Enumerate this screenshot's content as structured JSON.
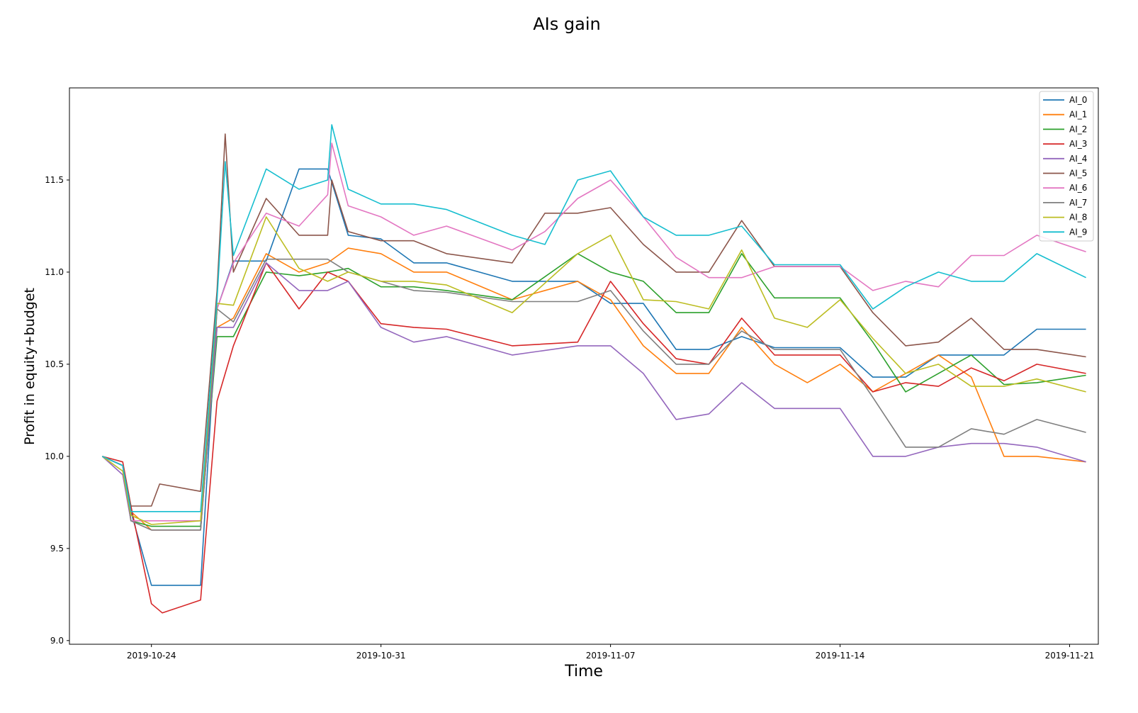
{
  "chart_data": {
    "type": "line",
    "title": "AIs gain",
    "xlabel": "Time",
    "ylabel": "Profit in equity+budget",
    "ylim": [
      8.98,
      12.0
    ],
    "xlim": [
      "2019-10-21T12:00",
      "2019-11-21T21:00"
    ],
    "y_ticks": [
      9.0,
      9.5,
      10.0,
      10.5,
      11.0,
      11.5
    ],
    "y_tick_labels": [
      "9.0",
      "9.5",
      "10.0",
      "10.5",
      "11.0",
      "11.5"
    ],
    "x_ticks": [
      "2019-10-24",
      "2019-10-31",
      "2019-11-07",
      "2019-11-14",
      "2019-11-21"
    ],
    "x_tick_labels": [
      "2019-10-24",
      "2019-10-31",
      "2019-11-07",
      "2019-11-14",
      "2019-11-21"
    ],
    "grid": false,
    "legend_position": "top-right",
    "series": [
      {
        "name": "AI_0",
        "color": "#1f77b4",
        "x": [
          "2019-10-22T12:00",
          "2019-10-23T03:00",
          "2019-10-23T09:00",
          "2019-10-24T00:00",
          "2019-10-25T12:00",
          "2019-10-26T00:00",
          "2019-10-26T12:00",
          "2019-10-27T12:00",
          "2019-10-28T12:00",
          "2019-10-29T09:00",
          "2019-10-30T00:00",
          "2019-10-31T00:00",
          "2019-11-01T00:00",
          "2019-11-02T00:00",
          "2019-11-04T00:00",
          "2019-11-06T00:00",
          "2019-11-07T00:00",
          "2019-11-08T00:00",
          "2019-11-09T00:00",
          "2019-11-10T00:00",
          "2019-11-11T00:00",
          "2019-11-12T00:00",
          "2019-11-14T00:00",
          "2019-11-15T00:00",
          "2019-11-16T00:00",
          "2019-11-17T00:00",
          "2019-11-18T00:00",
          "2019-11-19T00:00",
          "2019-11-20T00:00",
          "2019-11-21T12:00"
        ],
        "y": [
          10.0,
          9.95,
          9.7,
          9.3,
          9.3,
          10.8,
          11.06,
          11.06,
          11.56,
          11.56,
          11.2,
          11.18,
          11.05,
          11.05,
          10.95,
          10.95,
          10.83,
          10.83,
          10.58,
          10.58,
          10.65,
          10.59,
          10.59,
          10.43,
          10.43,
          10.55,
          10.55,
          10.55,
          10.69,
          10.69
        ]
      },
      {
        "name": "AI_1",
        "color": "#ff7f0e",
        "x": [
          "2019-10-22T12:00",
          "2019-10-23T03:00",
          "2019-10-23T09:00",
          "2019-10-24T00:00",
          "2019-10-25T12:00",
          "2019-10-26T00:00",
          "2019-10-26T12:00",
          "2019-10-27T12:00",
          "2019-10-28T12:00",
          "2019-10-29T09:00",
          "2019-10-30T00:00",
          "2019-10-31T00:00",
          "2019-11-01T00:00",
          "2019-11-02T00:00",
          "2019-11-04T00:00",
          "2019-11-06T00:00",
          "2019-11-07T00:00",
          "2019-11-08T00:00",
          "2019-11-09T00:00",
          "2019-11-10T00:00",
          "2019-11-11T00:00",
          "2019-11-12T00:00",
          "2019-11-13T00:00",
          "2019-11-14T00:00",
          "2019-11-15T00:00",
          "2019-11-16T00:00",
          "2019-11-17T00:00",
          "2019-11-18T00:00",
          "2019-11-19T00:00",
          "2019-11-20T00:00",
          "2019-11-21T12:00"
        ],
        "y": [
          10.0,
          9.95,
          9.7,
          9.6,
          9.6,
          10.7,
          10.75,
          11.1,
          11.0,
          11.05,
          11.13,
          11.1,
          11.0,
          11.0,
          10.85,
          10.95,
          10.85,
          10.6,
          10.45,
          10.45,
          10.7,
          10.5,
          10.4,
          10.5,
          10.35,
          10.45,
          10.55,
          10.43,
          10.0,
          10.0,
          9.97
        ]
      },
      {
        "name": "AI_2",
        "color": "#2ca02c",
        "x": [
          "2019-10-22T12:00",
          "2019-10-23T03:00",
          "2019-10-23T09:00",
          "2019-10-24T00:00",
          "2019-10-25T12:00",
          "2019-10-26T00:00",
          "2019-10-26T12:00",
          "2019-10-27T12:00",
          "2019-10-28T12:00",
          "2019-10-29T09:00",
          "2019-10-30T00:00",
          "2019-10-31T00:00",
          "2019-11-01T00:00",
          "2019-11-02T00:00",
          "2019-11-04T00:00",
          "2019-11-06T00:00",
          "2019-11-07T00:00",
          "2019-11-08T00:00",
          "2019-11-09T00:00",
          "2019-11-10T00:00",
          "2019-11-11T00:00",
          "2019-11-12T00:00",
          "2019-11-14T00:00",
          "2019-11-15T00:00",
          "2019-11-16T00:00",
          "2019-11-17T00:00",
          "2019-11-18T00:00",
          "2019-11-19T00:00",
          "2019-11-20T00:00",
          "2019-11-21T12:00"
        ],
        "y": [
          10.0,
          9.95,
          9.65,
          9.62,
          9.62,
          10.65,
          10.65,
          11.0,
          10.98,
          11.0,
          11.02,
          10.92,
          10.92,
          10.9,
          10.85,
          11.1,
          11.0,
          10.95,
          10.78,
          10.78,
          11.1,
          10.86,
          10.86,
          10.62,
          10.35,
          10.45,
          10.55,
          10.39,
          10.4,
          10.44
        ]
      },
      {
        "name": "AI_3",
        "color": "#d62728",
        "x": [
          "2019-10-22T12:00",
          "2019-10-23T03:00",
          "2019-10-23T09:00",
          "2019-10-24T00:00",
          "2019-10-24T08:00",
          "2019-10-25T12:00",
          "2019-10-26T00:00",
          "2019-10-26T12:00",
          "2019-10-27T12:00",
          "2019-10-28T12:00",
          "2019-10-29T09:00",
          "2019-10-30T00:00",
          "2019-10-31T00:00",
          "2019-11-01T00:00",
          "2019-11-02T00:00",
          "2019-11-04T00:00",
          "2019-11-06T00:00",
          "2019-11-07T00:00",
          "2019-11-08T00:00",
          "2019-11-09T00:00",
          "2019-11-10T00:00",
          "2019-11-11T00:00",
          "2019-11-12T00:00",
          "2019-11-14T00:00",
          "2019-11-15T00:00",
          "2019-11-16T00:00",
          "2019-11-17T00:00",
          "2019-11-18T00:00",
          "2019-11-19T00:00",
          "2019-11-20T00:00",
          "2019-11-21T12:00"
        ],
        "y": [
          10.0,
          9.97,
          9.73,
          9.2,
          9.15,
          9.22,
          10.3,
          10.6,
          11.05,
          10.8,
          11.0,
          10.95,
          10.72,
          10.7,
          10.69,
          10.6,
          10.62,
          10.95,
          10.72,
          10.53,
          10.5,
          10.75,
          10.55,
          10.55,
          10.35,
          10.4,
          10.38,
          10.48,
          10.41,
          10.5,
          10.45
        ]
      },
      {
        "name": "AI_4",
        "color": "#9467bd",
        "x": [
          "2019-10-22T12:00",
          "2019-10-23T03:00",
          "2019-10-23T09:00",
          "2019-10-24T00:00",
          "2019-10-25T12:00",
          "2019-10-26T00:00",
          "2019-10-26T12:00",
          "2019-10-27T12:00",
          "2019-10-28T12:00",
          "2019-10-29T09:00",
          "2019-10-30T00:00",
          "2019-10-31T00:00",
          "2019-11-01T00:00",
          "2019-11-02T00:00",
          "2019-11-04T00:00",
          "2019-11-06T00:00",
          "2019-11-07T00:00",
          "2019-11-08T00:00",
          "2019-11-09T00:00",
          "2019-11-10T00:00",
          "2019-11-11T00:00",
          "2019-11-12T00:00",
          "2019-11-14T00:00",
          "2019-11-15T00:00",
          "2019-11-16T00:00",
          "2019-11-17T00:00",
          "2019-11-18T00:00",
          "2019-11-19T00:00",
          "2019-11-20T00:00",
          "2019-11-21T12:00"
        ],
        "y": [
          10.0,
          9.9,
          9.65,
          9.6,
          9.6,
          10.7,
          10.7,
          11.05,
          10.9,
          10.9,
          10.95,
          10.7,
          10.62,
          10.65,
          10.55,
          10.6,
          10.6,
          10.45,
          10.2,
          10.23,
          10.4,
          10.26,
          10.26,
          10.0,
          10.0,
          10.05,
          10.07,
          10.07,
          10.05,
          9.97
        ]
      },
      {
        "name": "AI_5",
        "color": "#8c564b",
        "x": [
          "2019-10-22T12:00",
          "2019-10-23T03:00",
          "2019-10-23T09:00",
          "2019-10-24T00:00",
          "2019-10-24T06:00",
          "2019-10-25T12:00",
          "2019-10-26T00:00",
          "2019-10-26T06:00",
          "2019-10-26T12:00",
          "2019-10-27T12:00",
          "2019-10-28T12:00",
          "2019-10-29T09:00",
          "2019-10-29T12:00",
          "2019-10-30T00:00",
          "2019-10-31T00:00",
          "2019-11-01T00:00",
          "2019-11-02T00:00",
          "2019-11-04T00:00",
          "2019-11-05T00:00",
          "2019-11-06T00:00",
          "2019-11-07T00:00",
          "2019-11-08T00:00",
          "2019-11-09T00:00",
          "2019-11-10T00:00",
          "2019-11-11T00:00",
          "2019-11-12T00:00",
          "2019-11-14T00:00",
          "2019-11-15T00:00",
          "2019-11-16T00:00",
          "2019-11-17T00:00",
          "2019-11-18T00:00",
          "2019-11-19T00:00",
          "2019-11-20T00:00",
          "2019-11-21T12:00"
        ],
        "y": [
          10.0,
          9.95,
          9.73,
          9.73,
          9.85,
          9.81,
          10.9,
          11.75,
          11.0,
          11.4,
          11.2,
          11.2,
          11.5,
          11.22,
          11.17,
          11.17,
          11.1,
          11.05,
          11.32,
          11.32,
          11.35,
          11.15,
          11.0,
          11.0,
          11.28,
          11.03,
          11.03,
          10.78,
          10.6,
          10.62,
          10.75,
          10.58,
          10.58,
          10.54
        ]
      },
      {
        "name": "AI_6",
        "color": "#e377c2",
        "x": [
          "2019-10-22T12:00",
          "2019-10-23T03:00",
          "2019-10-23T09:00",
          "2019-10-24T00:00",
          "2019-10-25T12:00",
          "2019-10-26T00:00",
          "2019-10-26T12:00",
          "2019-10-27T12:00",
          "2019-10-28T12:00",
          "2019-10-29T09:00",
          "2019-10-29T12:00",
          "2019-10-30T00:00",
          "2019-10-31T00:00",
          "2019-11-01T00:00",
          "2019-11-02T00:00",
          "2019-11-04T00:00",
          "2019-11-05T00:00",
          "2019-11-06T00:00",
          "2019-11-07T00:00",
          "2019-11-08T00:00",
          "2019-11-09T00:00",
          "2019-11-10T00:00",
          "2019-11-11T00:00",
          "2019-11-12T00:00",
          "2019-11-14T00:00",
          "2019-11-15T00:00",
          "2019-11-16T00:00",
          "2019-11-17T00:00",
          "2019-11-18T00:00",
          "2019-11-19T00:00",
          "2019-11-20T00:00",
          "2019-11-21T12:00"
        ],
        "y": [
          10.0,
          9.95,
          9.65,
          9.65,
          9.65,
          10.8,
          11.05,
          11.32,
          11.25,
          11.42,
          11.7,
          11.36,
          11.3,
          11.2,
          11.25,
          11.12,
          11.22,
          11.4,
          11.5,
          11.3,
          11.08,
          10.97,
          10.97,
          11.03,
          11.03,
          10.9,
          10.95,
          10.92,
          11.09,
          11.09,
          11.2,
          11.11
        ]
      },
      {
        "name": "AI_7",
        "color": "#7f7f7f",
        "x": [
          "2019-10-22T12:00",
          "2019-10-23T03:00",
          "2019-10-23T09:00",
          "2019-10-24T00:00",
          "2019-10-25T12:00",
          "2019-10-26T00:00",
          "2019-10-26T12:00",
          "2019-10-27T12:00",
          "2019-10-28T12:00",
          "2019-10-29T09:00",
          "2019-10-30T00:00",
          "2019-10-31T00:00",
          "2019-11-01T00:00",
          "2019-11-02T00:00",
          "2019-11-04T00:00",
          "2019-11-06T00:00",
          "2019-11-07T00:00",
          "2019-11-08T00:00",
          "2019-11-09T00:00",
          "2019-11-10T00:00",
          "2019-11-11T00:00",
          "2019-11-12T00:00",
          "2019-11-14T00:00",
          "2019-11-15T00:00",
          "2019-11-16T00:00",
          "2019-11-17T00:00",
          "2019-11-18T00:00",
          "2019-11-19T00:00",
          "2019-11-20T00:00",
          "2019-11-21T12:00"
        ],
        "y": [
          10.0,
          9.95,
          9.65,
          9.6,
          9.6,
          10.8,
          10.73,
          11.07,
          11.07,
          11.07,
          11.0,
          10.95,
          10.9,
          10.89,
          10.84,
          10.84,
          10.9,
          10.68,
          10.5,
          10.5,
          10.68,
          10.58,
          10.58,
          10.32,
          10.05,
          10.05,
          10.15,
          10.12,
          10.2,
          10.13
        ]
      },
      {
        "name": "AI_8",
        "color": "#bcbd22",
        "x": [
          "2019-10-22T12:00",
          "2019-10-23T03:00",
          "2019-10-23T09:00",
          "2019-10-24T00:00",
          "2019-10-25T12:00",
          "2019-10-26T00:00",
          "2019-10-26T12:00",
          "2019-10-27T12:00",
          "2019-10-28T12:00",
          "2019-10-29T09:00",
          "2019-10-30T00:00",
          "2019-10-31T00:00",
          "2019-11-01T00:00",
          "2019-11-02T00:00",
          "2019-11-04T00:00",
          "2019-11-06T00:00",
          "2019-11-07T00:00",
          "2019-11-08T00:00",
          "2019-11-09T00:00",
          "2019-11-10T00:00",
          "2019-11-11T00:00",
          "2019-11-12T00:00",
          "2019-11-13T00:00",
          "2019-11-14T00:00",
          "2019-11-15T00:00",
          "2019-11-16T00:00",
          "2019-11-17T00:00",
          "2019-11-18T00:00",
          "2019-11-19T00:00",
          "2019-11-20T00:00",
          "2019-11-21T12:00"
        ],
        "y": [
          10.0,
          9.92,
          9.68,
          9.63,
          9.65,
          10.83,
          10.82,
          11.3,
          11.02,
          10.95,
          11.0,
          10.95,
          10.95,
          10.93,
          10.78,
          11.1,
          11.2,
          10.85,
          10.84,
          10.8,
          11.12,
          10.75,
          10.7,
          10.85,
          10.64,
          10.45,
          10.5,
          10.38,
          10.38,
          10.42,
          10.35
        ]
      },
      {
        "name": "AI_9",
        "color": "#17becf",
        "x": [
          "2019-10-22T12:00",
          "2019-10-23T03:00",
          "2019-10-23T09:00",
          "2019-10-24T00:00",
          "2019-10-25T12:00",
          "2019-10-26T00:00",
          "2019-10-26T06:00",
          "2019-10-26T12:00",
          "2019-10-27T12:00",
          "2019-10-28T12:00",
          "2019-10-29T09:00",
          "2019-10-29T12:00",
          "2019-10-30T00:00",
          "2019-10-31T00:00",
          "2019-11-01T00:00",
          "2019-11-02T00:00",
          "2019-11-04T00:00",
          "2019-11-05T00:00",
          "2019-11-06T00:00",
          "2019-11-07T00:00",
          "2019-11-08T00:00",
          "2019-11-09T00:00",
          "2019-11-10T00:00",
          "2019-11-11T00:00",
          "2019-11-12T00:00",
          "2019-11-14T00:00",
          "2019-11-15T00:00",
          "2019-11-16T00:00",
          "2019-11-17T00:00",
          "2019-11-18T00:00",
          "2019-11-19T00:00",
          "2019-11-20T00:00",
          "2019-11-21T12:00"
        ],
        "y": [
          10.0,
          9.95,
          9.7,
          9.7,
          9.7,
          10.85,
          11.6,
          11.09,
          11.56,
          11.45,
          11.5,
          11.8,
          11.45,
          11.37,
          11.37,
          11.34,
          11.2,
          11.15,
          11.5,
          11.55,
          11.3,
          11.2,
          11.2,
          11.25,
          11.04,
          11.04,
          10.8,
          10.92,
          11.0,
          10.95,
          10.95,
          11.1,
          10.97
        ]
      }
    ]
  }
}
